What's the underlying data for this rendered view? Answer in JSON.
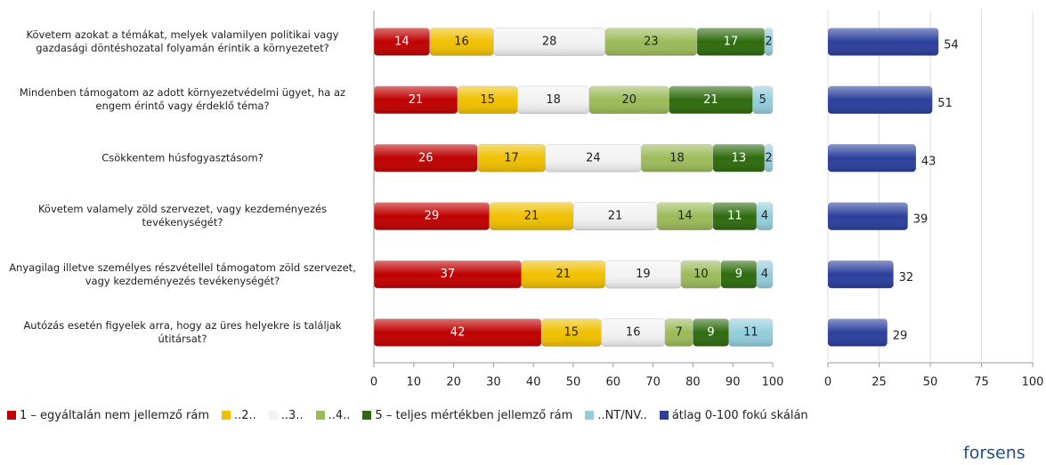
{
  "chart_data": [
    {
      "type": "stacked_bar_horizontal",
      "categories": [
        "Követem azokat a témákat, melyek valamilyen politikai vagy gazdasági döntéshozatal folyamán érintik a környezetet?",
        "Mindenben támogatom az adott környezetvédelmi ügyet, ha az engem érintő vagy érdeklő téma?",
        "Csökkentem húsfogyasztásom?",
        "Követem valamely zöld szervezet, vagy kezdeményezés tevékenységét?",
        "Anyagilag illetve személyes részvétellel támogatom zöld szervezet, vagy kezdeményezés tevékenységét?",
        "Autózás esetén figyelek arra, hogy az üres helyekre is találjak útitársat?"
      ],
      "series": [
        {
          "name": "1 – egyáltalán nem jellemző rám",
          "color": "#c00000",
          "values": [
            14,
            21,
            26,
            29,
            37,
            42
          ]
        },
        {
          "name": "..2..",
          "color": "#f0c000",
          "values": [
            16,
            15,
            17,
            21,
            21,
            15
          ]
        },
        {
          "name": "..3..",
          "color": "#f2f2f2",
          "values": [
            28,
            18,
            24,
            21,
            19,
            16
          ]
        },
        {
          "name": "..4..",
          "color": "#9bbb59",
          "values": [
            23,
            20,
            18,
            14,
            10,
            7
          ]
        },
        {
          "name": "5 – teljes mértékben jellemző rám",
          "color": "#2e6b0e",
          "values": [
            17,
            21,
            13,
            11,
            9,
            9
          ]
        },
        {
          "name": "..NT/NV..",
          "color": "#93cddd",
          "values": [
            2,
            5,
            2,
            4,
            4,
            11
          ]
        }
      ],
      "xlim": [
        0,
        100
      ],
      "xticks": [
        0,
        10,
        20,
        30,
        40,
        50,
        60,
        70,
        80,
        90,
        100
      ]
    },
    {
      "type": "bar_horizontal",
      "series": [
        {
          "name": "átlag 0-100 fokú skálán",
          "color": "#2b3f9c",
          "values": [
            54,
            51,
            43,
            39,
            32,
            29
          ]
        }
      ],
      "xlim": [
        0,
        100
      ],
      "xticks": [
        0,
        25,
        50,
        75,
        100
      ],
      "grid": true
    }
  ],
  "logo": "forsens"
}
